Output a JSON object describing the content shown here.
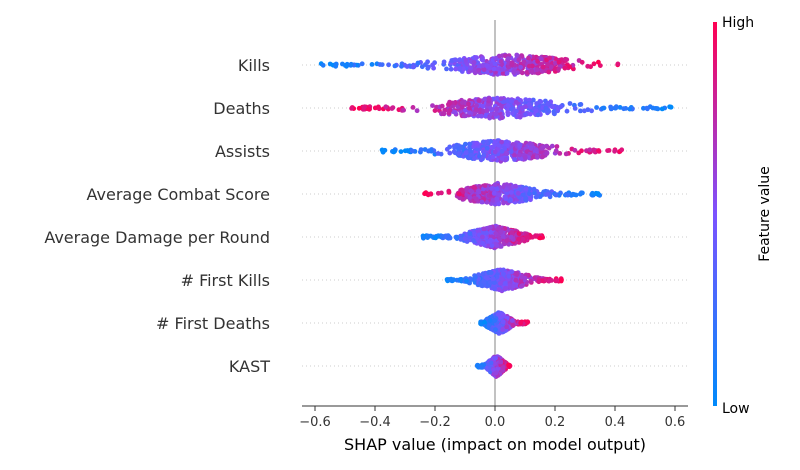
{
  "chart_data": {
    "type": "scatter",
    "subtype": "shap-beeswarm",
    "xlabel": "SHAP value (impact on model output)",
    "xlim": [
      -0.64,
      0.64
    ],
    "xticks": [
      -0.6,
      -0.4,
      -0.2,
      0.0,
      0.2,
      0.4,
      0.6
    ],
    "xtick_labels": [
      "−0.6",
      "−0.4",
      "−0.2",
      "0.0",
      "0.2",
      "0.4",
      "0.6"
    ],
    "colorbar": {
      "label": "Feature value",
      "high_label": "High",
      "low_label": "Low",
      "low_color": "#008afb",
      "high_color": "#ff0052"
    },
    "features": [
      {
        "name": "Kills",
        "min": -0.58,
        "max": 0.42,
        "core_low": -0.12,
        "core_high": 0.22,
        "trend": 1
      },
      {
        "name": "Deaths",
        "min": -0.48,
        "max": 0.59,
        "core_low": -0.15,
        "core_high": 0.18,
        "trend": -1
      },
      {
        "name": "Assists",
        "min": -0.38,
        "max": 0.43,
        "core_low": -0.12,
        "core_high": 0.15,
        "trend": 1
      },
      {
        "name": "Average Combat Score",
        "min": -0.24,
        "max": 0.35,
        "core_low": -0.1,
        "core_high": 0.12,
        "trend": -1
      },
      {
        "name": "Average Damage per Round",
        "min": -0.24,
        "max": 0.16,
        "core_low": -0.1,
        "core_high": 0.1,
        "trend": 1
      },
      {
        "name": "# First Kills",
        "min": -0.16,
        "max": 0.23,
        "core_low": -0.05,
        "core_high": 0.1,
        "trend": 1
      },
      {
        "name": "# First Deaths",
        "min": -0.05,
        "max": 0.11,
        "core_low": -0.02,
        "core_high": 0.05,
        "trend": 1
      },
      {
        "name": "KAST",
        "min": -0.06,
        "max": 0.05,
        "core_low": -0.02,
        "core_high": 0.03,
        "trend": 1
      }
    ]
  }
}
